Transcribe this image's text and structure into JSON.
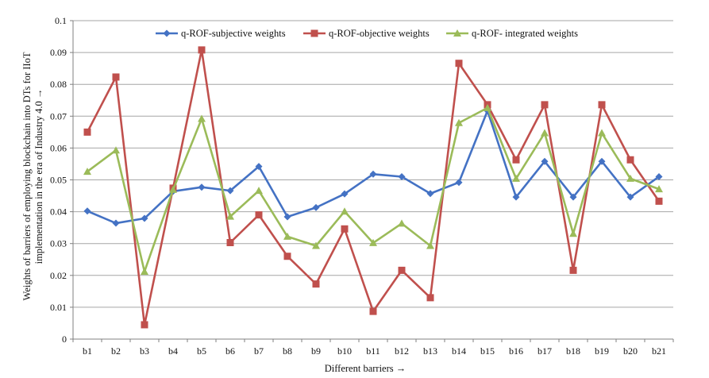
{
  "chart_data": {
    "type": "line",
    "title": "",
    "xlabel": "Different barriers →",
    "ylabel_line1": "Weights of barriers of employing blockchain into DTs for IIoT",
    "ylabel_line2": "implementation in the era of Industry 4.0 →",
    "ylim": [
      0,
      0.1
    ],
    "yticks": [
      0,
      0.01,
      0.02,
      0.03,
      0.04,
      0.05,
      0.06,
      0.07,
      0.08,
      0.09,
      0.1
    ],
    "ytick_labels": [
      "0",
      "0.01",
      "0.02",
      "0.03",
      "0.04",
      "0.05",
      "0.06",
      "0.07",
      "0.08",
      "0.09",
      "0.1"
    ],
    "grid": "horizontal",
    "legend_position": "top",
    "categories": [
      "b1",
      "b2",
      "b3",
      "b4",
      "b5",
      "b6",
      "b7",
      "b8",
      "b9",
      "b10",
      "b11",
      "b12",
      "b13",
      "b14",
      "b15",
      "b16",
      "b17",
      "b18",
      "b19",
      "b20",
      "b21"
    ],
    "series": [
      {
        "name": "q-ROF-subjective weights",
        "color": "#4472C4",
        "marker": "diamond",
        "values": [
          0.0402,
          0.0364,
          0.0379,
          0.0464,
          0.0477,
          0.0466,
          0.0542,
          0.0384,
          0.0413,
          0.0456,
          0.0518,
          0.051,
          0.0457,
          0.0492,
          0.0717,
          0.0446,
          0.0558,
          0.0446,
          0.0558,
          0.0446,
          0.051
        ]
      },
      {
        "name": "q-ROF-objective weights",
        "color": "#C0504D",
        "marker": "square",
        "values": [
          0.065,
          0.0823,
          0.0045,
          0.0474,
          0.0908,
          0.0303,
          0.039,
          0.026,
          0.0173,
          0.0346,
          0.0087,
          0.0216,
          0.013,
          0.0866,
          0.0736,
          0.0563,
          0.0736,
          0.0216,
          0.0736,
          0.0563,
          0.0433
        ]
      },
      {
        "name": "q-ROF- integrated weights",
        "color": "#9BBB59",
        "marker": "triangle",
        "values": [
          0.0526,
          0.0593,
          0.0212,
          0.0469,
          0.0692,
          0.0385,
          0.0466,
          0.0322,
          0.0293,
          0.0401,
          0.0302,
          0.0363,
          0.0293,
          0.0679,
          0.0726,
          0.0504,
          0.0647,
          0.0331,
          0.0647,
          0.0504,
          0.0471
        ]
      }
    ]
  }
}
